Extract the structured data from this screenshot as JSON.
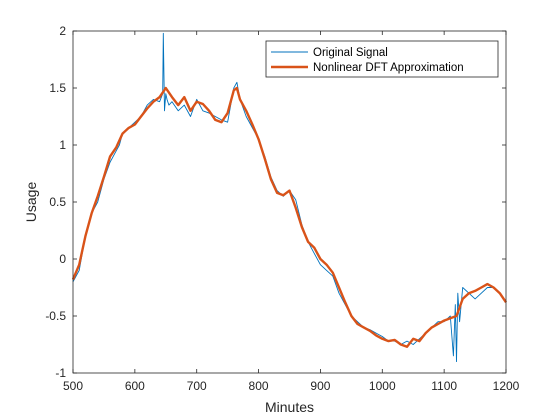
{
  "chart_data": {
    "type": "line",
    "title": "",
    "xlabel": "Minutes",
    "ylabel": "Usage",
    "xlim": [
      500,
      1200
    ],
    "ylim": [
      -1,
      2
    ],
    "xticks": [
      500,
      600,
      700,
      800,
      900,
      1000,
      1100,
      1200
    ],
    "yticks": [
      -1,
      -0.5,
      0,
      0.5,
      1,
      1.5,
      2
    ],
    "grid": false,
    "legend": "top-right",
    "colors": {
      "original": "#0072BD",
      "approx": "#D95319",
      "axis": "#262626"
    },
    "series": [
      {
        "name": "Original Signal",
        "style": "thin",
        "x": [
          500,
          510,
          520,
          530,
          540,
          550,
          560,
          570,
          575,
          580,
          590,
          600,
          610,
          620,
          630,
          640,
          645,
          646,
          648,
          650,
          652,
          655,
          660,
          670,
          680,
          690,
          700,
          710,
          720,
          730,
          740,
          750,
          760,
          765,
          770,
          780,
          790,
          800,
          810,
          820,
          830,
          840,
          850,
          860,
          870,
          880,
          890,
          900,
          910,
          920,
          930,
          940,
          950,
          960,
          970,
          980,
          990,
          1000,
          1010,
          1020,
          1030,
          1040,
          1050,
          1060,
          1070,
          1080,
          1090,
          1100,
          1110,
          1115,
          1118,
          1120,
          1122,
          1125,
          1130,
          1140,
          1150,
          1160,
          1170,
          1180,
          1190,
          1200
        ],
        "y": [
          -0.2,
          -0.1,
          0.2,
          0.4,
          0.5,
          0.7,
          0.85,
          0.95,
          1.0,
          1.1,
          1.15,
          1.2,
          1.25,
          1.35,
          1.4,
          1.38,
          1.45,
          1.98,
          1.3,
          1.45,
          1.4,
          1.35,
          1.38,
          1.3,
          1.35,
          1.25,
          1.4,
          1.3,
          1.28,
          1.25,
          1.22,
          1.2,
          1.5,
          1.55,
          1.4,
          1.25,
          1.15,
          1.05,
          0.9,
          0.72,
          0.6,
          0.55,
          0.6,
          0.52,
          0.3,
          0.15,
          0.05,
          -0.05,
          -0.1,
          -0.15,
          -0.3,
          -0.4,
          -0.5,
          -0.55,
          -0.6,
          -0.62,
          -0.65,
          -0.68,
          -0.72,
          -0.72,
          -0.75,
          -0.72,
          -0.75,
          -0.7,
          -0.65,
          -0.6,
          -0.55,
          -0.55,
          -0.5,
          -0.85,
          -0.4,
          -0.9,
          -0.3,
          -0.55,
          -0.25,
          -0.3,
          -0.35,
          -0.3,
          -0.25,
          -0.25,
          -0.3,
          -0.38
        ]
      },
      {
        "name": "Nonlinear DFT Approximation",
        "style": "thick",
        "x": [
          500,
          510,
          520,
          530,
          540,
          550,
          560,
          570,
          580,
          590,
          600,
          610,
          620,
          630,
          640,
          650,
          660,
          670,
          680,
          690,
          700,
          710,
          720,
          730,
          740,
          750,
          760,
          765,
          770,
          780,
          790,
          800,
          810,
          820,
          830,
          840,
          850,
          860,
          870,
          880,
          890,
          900,
          910,
          920,
          930,
          940,
          950,
          960,
          970,
          980,
          990,
          1000,
          1010,
          1020,
          1030,
          1040,
          1050,
          1060,
          1070,
          1080,
          1090,
          1100,
          1110,
          1120,
          1130,
          1140,
          1150,
          1160,
          1170,
          1180,
          1190,
          1200
        ],
        "y": [
          -0.18,
          -0.05,
          0.2,
          0.4,
          0.55,
          0.72,
          0.9,
          0.98,
          1.1,
          1.15,
          1.18,
          1.25,
          1.32,
          1.38,
          1.42,
          1.5,
          1.42,
          1.35,
          1.42,
          1.3,
          1.38,
          1.36,
          1.3,
          1.22,
          1.2,
          1.28,
          1.48,
          1.5,
          1.4,
          1.3,
          1.18,
          1.05,
          0.88,
          0.7,
          0.58,
          0.56,
          0.6,
          0.45,
          0.28,
          0.15,
          0.1,
          0.0,
          -0.05,
          -0.12,
          -0.25,
          -0.38,
          -0.5,
          -0.57,
          -0.6,
          -0.63,
          -0.67,
          -0.7,
          -0.72,
          -0.71,
          -0.75,
          -0.77,
          -0.7,
          -0.72,
          -0.65,
          -0.6,
          -0.57,
          -0.54,
          -0.52,
          -0.5,
          -0.35,
          -0.3,
          -0.28,
          -0.25,
          -0.22,
          -0.25,
          -0.3,
          -0.38
        ]
      }
    ]
  }
}
